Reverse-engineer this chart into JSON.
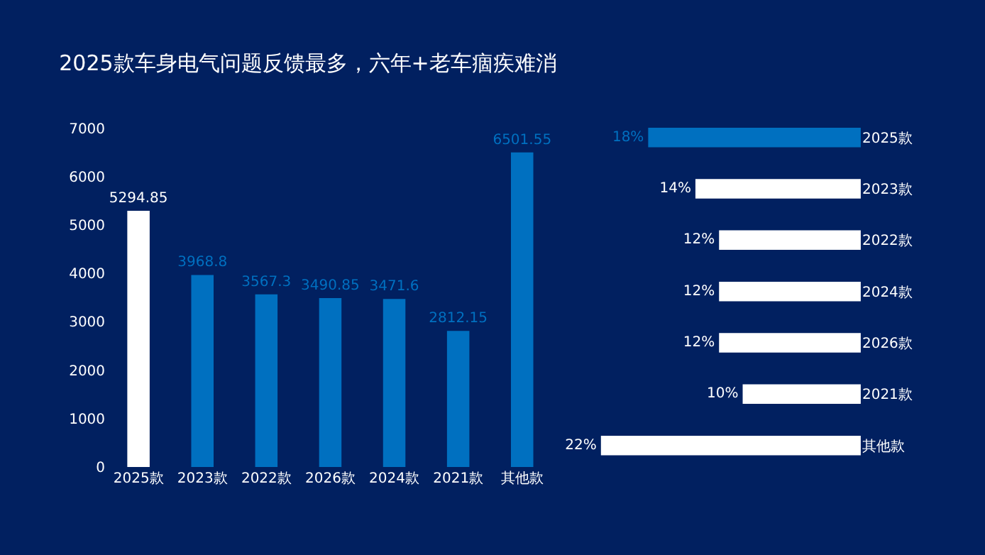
{
  "chart_data": [
    {
      "type": "bar",
      "title": "2025款车身电气问题反馈最多，六年+老车痼疾难消",
      "categories": [
        "2025款",
        "2023款",
        "2022款",
        "2026款",
        "2024款",
        "2021款",
        "其他款"
      ],
      "values": [
        5294.85,
        3968.8,
        3567.3,
        3490.85,
        3471.6,
        2812.15,
        6501.55
      ],
      "colors": [
        "#ffffff",
        "#0070c0",
        "#0070c0",
        "#0070c0",
        "#0070c0",
        "#0070c0",
        "#0070c0"
      ],
      "ylim": [
        0,
        7000
      ],
      "yticks": [
        0,
        1000,
        2000,
        3000,
        4000,
        5000,
        6000,
        7000
      ],
      "grid": false,
      "data_labels": true
    },
    {
      "type": "bar",
      "orientation": "horizontal",
      "categories": [
        "2025款",
        "2023款",
        "2022款",
        "2024款",
        "2026款",
        "2021款",
        "其他款"
      ],
      "values": [
        18,
        14,
        12,
        12,
        12,
        10,
        22
      ],
      "value_labels": [
        "18%",
        "14%",
        "12%",
        "12%",
        "12%",
        "10%",
        "22%"
      ],
      "colors": [
        "#0070c0",
        "#ffffff",
        "#ffffff",
        "#ffffff",
        "#ffffff",
        "#ffffff",
        "#ffffff"
      ],
      "tick_labels": "y",
      "grid": false
    }
  ]
}
